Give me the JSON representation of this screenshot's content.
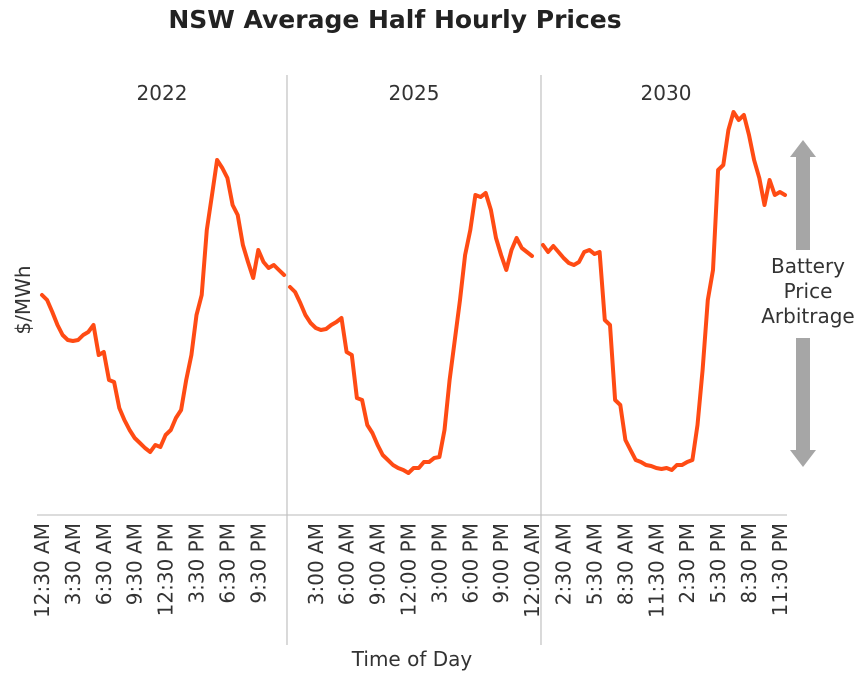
{
  "title": "NSW Average Half Hourly Prices",
  "y_label": "$/MWh",
  "x_label": "Time of Day",
  "annotation": [
    "Battery",
    "Price",
    "Arbitrage"
  ],
  "chart_data": [
    {
      "type": "line",
      "title": "2022",
      "color": "#ff4b14",
      "ylim": [
        0,
        430
      ],
      "categories": [
        "12:30 AM",
        null,
        null,
        null,
        null,
        null,
        "3:30 AM",
        null,
        null,
        null,
        null,
        null,
        "6:30 AM",
        null,
        null,
        null,
        null,
        null,
        "9:30 AM",
        null,
        null,
        null,
        null,
        null,
        "12:30 PM",
        null,
        null,
        null,
        null,
        null,
        "3:30 PM",
        null,
        null,
        null,
        null,
        null,
        "6:30 PM",
        null,
        null,
        null,
        null,
        null,
        "9:30 PM",
        null,
        null,
        null,
        null,
        null
      ],
      "values": [
        220,
        215,
        203,
        190,
        180,
        175,
        174,
        175,
        180,
        183,
        190,
        160,
        163,
        135,
        133,
        107,
        95,
        85,
        77,
        72,
        67,
        63,
        70,
        68,
        80,
        85,
        97,
        105,
        135,
        160,
        200,
        220,
        285,
        320,
        355,
        347,
        337,
        310,
        300,
        270,
        253,
        237,
        265,
        253,
        247,
        250,
        245,
        240
      ]
    },
    {
      "type": "line",
      "title": "2025",
      "color": "#ff4b14",
      "ylim": [
        0,
        430
      ],
      "categories": [
        null,
        null,
        null,
        null,
        null,
        "3:00 AM",
        null,
        null,
        null,
        null,
        null,
        "6:00 AM",
        null,
        null,
        null,
        null,
        null,
        "9:00 AM",
        null,
        null,
        null,
        null,
        null,
        "12:00 PM",
        null,
        null,
        null,
        null,
        null,
        "3:00 PM",
        null,
        null,
        null,
        null,
        null,
        "6:00 PM",
        null,
        null,
        null,
        null,
        null,
        "9:00 PM",
        null,
        null,
        null,
        null,
        null,
        "12:00 AM"
      ],
      "values": [
        228,
        223,
        212,
        200,
        192,
        187,
        185,
        186,
        190,
        193,
        197,
        163,
        160,
        117,
        115,
        90,
        82,
        70,
        60,
        55,
        50,
        47,
        45,
        42,
        47,
        47,
        53,
        53,
        57,
        58,
        85,
        135,
        175,
        215,
        260,
        285,
        320,
        318,
        322,
        305,
        277,
        260,
        245,
        265,
        277,
        267,
        263,
        259
      ]
    },
    {
      "type": "line",
      "title": "2030",
      "color": "#ff4b14",
      "ylim": [
        0,
        430
      ],
      "categories": [
        null,
        null,
        null,
        null,
        "2:30 AM",
        null,
        null,
        null,
        null,
        null,
        "5:30 AM",
        null,
        null,
        null,
        null,
        null,
        "8:30 AM",
        null,
        null,
        null,
        null,
        null,
        "11:30 AM",
        null,
        null,
        null,
        null,
        null,
        "2:30 PM",
        null,
        null,
        null,
        null,
        null,
        "5:30 PM",
        null,
        null,
        null,
        null,
        null,
        "8:30 PM",
        null,
        null,
        null,
        null,
        null,
        "11:30 PM",
        null
      ],
      "values": [
        270,
        263,
        269,
        263,
        257,
        252,
        250,
        253,
        263,
        265,
        261,
        263,
        195,
        190,
        115,
        110,
        75,
        65,
        55,
        53,
        50,
        49,
        47,
        46,
        47,
        45,
        50,
        50,
        53,
        55,
        90,
        145,
        215,
        245,
        345,
        350,
        385,
        403,
        395,
        400,
        380,
        355,
        337,
        310,
        335,
        320,
        323,
        320
      ]
    }
  ]
}
